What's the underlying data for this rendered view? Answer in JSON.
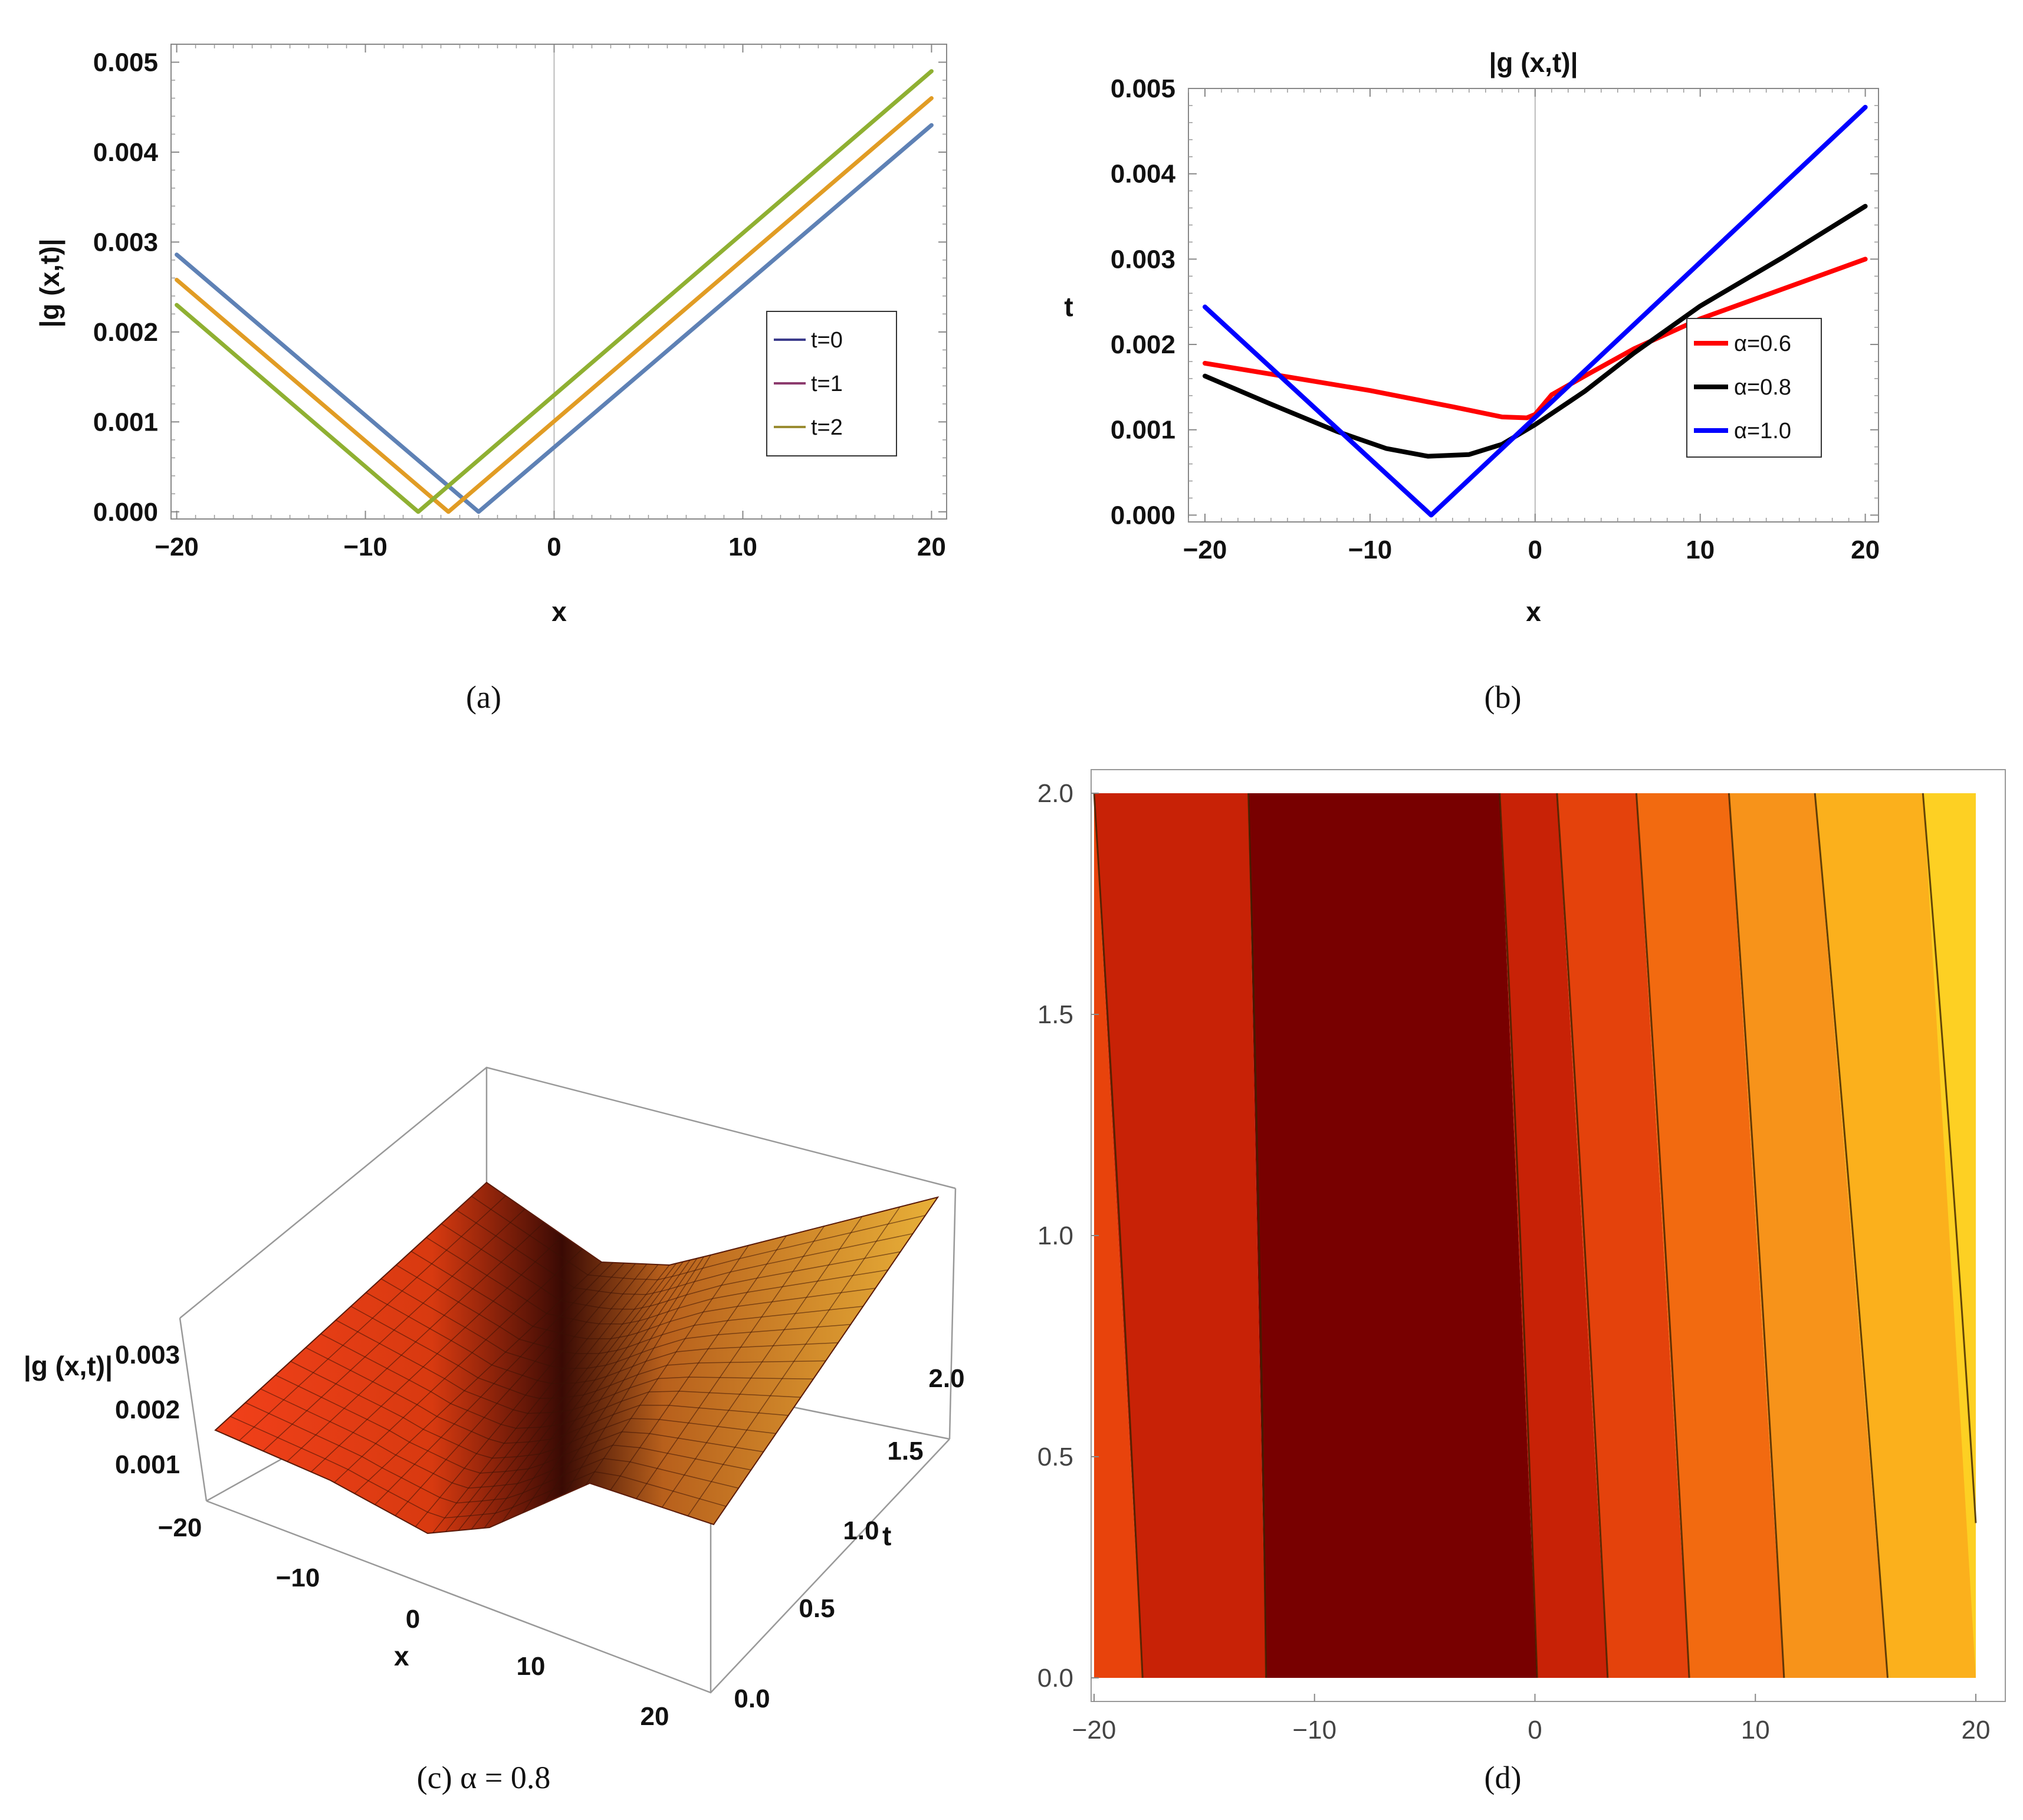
{
  "panels": {
    "a": {
      "caption": "(a)"
    },
    "b": {
      "caption": "(b)"
    },
    "c": {
      "caption": "(c) α = 0.8"
    },
    "d": {
      "caption": "(d)"
    }
  },
  "colors": {
    "t0": "#5e81b5",
    "t1": "#e19c24",
    "t2": "#8fb032",
    "legend_t0": "#3c3c8c",
    "legend_t1": "#8c3c6e",
    "legend_t2": "#9a8c32",
    "a06": "#ff0000",
    "a08": "#000000",
    "a10": "#0000ff"
  },
  "chart_data": [
    {
      "id": "a",
      "type": "line",
      "title": "",
      "xlabel": "x",
      "ylabel": "|g (x,t)|",
      "xlim": [
        -20.3,
        20.8
      ],
      "ylim": [
        -8e-05,
        0.0052
      ],
      "xticks": [
        -20,
        -10,
        0,
        10,
        20
      ],
      "xtick_labels": [
        "−20",
        "−10",
        "0",
        "10",
        "20"
      ],
      "yticks": [
        0.0,
        0.001,
        0.002,
        0.003,
        0.004,
        0.005
      ],
      "ytick_labels": [
        "0.000",
        "0.001",
        "0.002",
        "0.003",
        "0.004",
        "0.005"
      ],
      "legend": {
        "position": "center-right",
        "entries": [
          "t=0",
          "t=1",
          "t=2"
        ]
      },
      "series": [
        {
          "name": "t=0",
          "x": [
            -20,
            -4.0,
            20
          ],
          "y": [
            0.00286,
            0.0,
            0.0043
          ]
        },
        {
          "name": "t=1",
          "x": [
            -20,
            -5.6,
            20
          ],
          "y": [
            0.00258,
            0.0,
            0.0046
          ]
        },
        {
          "name": "t=2",
          "x": [
            -20,
            -7.2,
            20
          ],
          "y": [
            0.0023,
            0.0,
            0.0049
          ]
        }
      ]
    },
    {
      "id": "b",
      "type": "line",
      "title": "|g (x,t)|",
      "xlabel": "x",
      "ylabel": "t",
      "xlim": [
        -21,
        20.8
      ],
      "ylim": [
        -8e-05,
        0.005
      ],
      "xticks": [
        -20,
        -10,
        0,
        10,
        20
      ],
      "xtick_labels": [
        "−20",
        "−10",
        "0",
        "10",
        "20"
      ],
      "yticks": [
        0.0,
        0.001,
        0.002,
        0.003,
        0.004,
        0.005
      ],
      "ytick_labels": [
        "0.000",
        "0.001",
        "0.002",
        "0.003",
        "0.004",
        "0.005"
      ],
      "legend": {
        "position": "center-right",
        "entries": [
          "α=0.6",
          "α=0.8",
          "α=1.0"
        ]
      },
      "series": [
        {
          "name": "α=0.6",
          "x": [
            -20,
            -15,
            -10,
            -5,
            -2,
            -0.5,
            0,
            1,
            3,
            6,
            10,
            15,
            20
          ],
          "y": [
            0.00178,
            0.00162,
            0.00146,
            0.00127,
            0.00115,
            0.00114,
            0.00118,
            0.00141,
            0.00163,
            0.00195,
            0.0023,
            0.00265,
            0.003
          ]
        },
        {
          "name": "α=0.8",
          "x": [
            -20,
            -16,
            -12,
            -9,
            -6.5,
            -4,
            -2,
            0,
            3,
            6,
            10,
            15,
            20
          ],
          "y": [
            0.00163,
            0.0013,
            0.00098,
            0.00078,
            0.00069,
            0.00071,
            0.00083,
            0.00106,
            0.00145,
            0.0019,
            0.00245,
            0.00302,
            0.00362
          ]
        },
        {
          "name": "α=1.0",
          "x": [
            -20,
            -6.3,
            20
          ],
          "y": [
            0.00244,
            0.0,
            0.00478
          ]
        }
      ]
    },
    {
      "id": "c",
      "type": "surface",
      "title": "",
      "xlabel": "x",
      "ylabel": "t",
      "zlabel": "|g (x,t)|",
      "xticks": [
        -20,
        -10,
        0,
        10,
        20
      ],
      "xtick_labels": [
        "−20",
        "−10",
        "0",
        "10",
        "20"
      ],
      "tticks": [
        0.0,
        0.5,
        1.0,
        1.5,
        2.0
      ],
      "ttick_labels": [
        "0.0",
        "0.5",
        "1.0",
        "1.5",
        "2.0"
      ],
      "zticks": [
        0.001,
        0.002,
        0.003
      ],
      "ztick_labels": [
        "0.001",
        "0.002",
        "0.003"
      ],
      "alpha": 0.8
    },
    {
      "id": "d",
      "type": "heatmap",
      "subtype": "contour",
      "title": "",
      "xlim": [
        -20,
        20
      ],
      "ylim": [
        0,
        2
      ],
      "xticks": [
        -20,
        -10,
        0,
        10,
        20
      ],
      "xtick_labels": [
        "−20",
        "−10",
        "0",
        "10",
        "20"
      ],
      "yticks": [
        0.0,
        0.5,
        1.0,
        1.5,
        2.0
      ],
      "ytick_labels": [
        "0.0",
        "0.5",
        "1.0",
        "1.5",
        "2.0"
      ],
      "contour_x_at_t0": [
        -17.8,
        -12.2,
        0.1,
        3.3,
        7.0,
        11.3,
        16.0
      ],
      "contour_x_at_t2": [
        -20.0,
        -13.0,
        -1.6,
        1.0,
        4.6,
        8.8,
        12.7,
        17.6
      ],
      "band_colors": [
        "#e8430c",
        "#c82206",
        "#780000",
        "#c82206",
        "#e4420c",
        "#f26a10",
        "#f7931a",
        "#fbb01c",
        "#fdd023"
      ]
    }
  ]
}
